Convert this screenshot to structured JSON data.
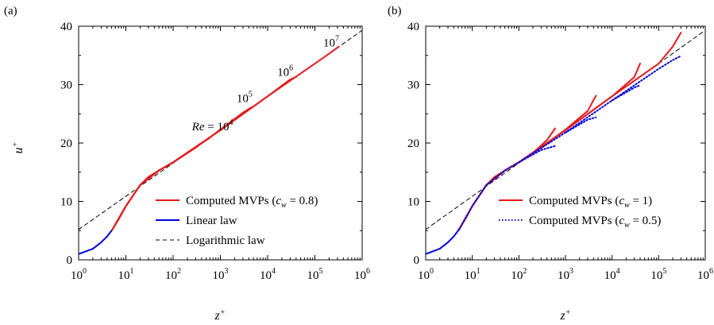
{
  "chart_data": [
    {
      "type": "line",
      "panel_label": "(a)",
      "xlabel": "z",
      "xlabel_sup": "+",
      "ylabel": "u",
      "ylabel_sup": "+",
      "xscale": "log",
      "xlim": [
        1,
        1000000
      ],
      "ylim": [
        0,
        40
      ],
      "x_ticks": [
        {
          "base": "10",
          "exp": "0"
        },
        {
          "base": "10",
          "exp": "1"
        },
        {
          "base": "10",
          "exp": "2"
        },
        {
          "base": "10",
          "exp": "3"
        },
        {
          "base": "10",
          "exp": "4"
        },
        {
          "base": "10",
          "exp": "5"
        },
        {
          "base": "10",
          "exp": "6"
        }
      ],
      "y_ticks": [
        "0",
        "10",
        "20",
        "30",
        "40"
      ],
      "legend_position": "bottom-right",
      "legend": [
        {
          "prefix": "Computed MVPs (",
          "var": "c",
          "sub": "w",
          "suffix": " = 0.8)",
          "color": "#e41a1c",
          "style": "solid"
        },
        {
          "prefix": "Linear law",
          "var": "",
          "sub": "",
          "suffix": "",
          "color": "#0000dd",
          "style": "solid"
        },
        {
          "prefix": "Logarithmic law",
          "var": "",
          "sub": "",
          "suffix": "",
          "color": "#000000",
          "style": "dashed"
        }
      ],
      "re_labels": [
        {
          "prefix": "Re",
          "mid": " = 10",
          "exp": "4",
          "x": 250,
          "y": 22.2
        },
        {
          "prefix": "",
          "mid": "10",
          "exp": "5",
          "x": 2200,
          "y": 27.0
        },
        {
          "prefix": "",
          "mid": "10",
          "exp": "6",
          "x": 16000,
          "y": 31.5
        },
        {
          "prefix": "",
          "mid": "10",
          "exp": "7",
          "x": 150000,
          "y": 36.5
        }
      ],
      "series": [
        {
          "role": "linear",
          "color": "#0000dd",
          "style": "solid",
          "x": [
            1,
            2,
            3,
            4,
            5.2
          ],
          "y": [
            1,
            1.9,
            3.0,
            4.0,
            5.2
          ]
        },
        {
          "role": "log",
          "color": "#000000",
          "style": "dashed",
          "x": [
            1,
            1000000
          ],
          "y": [
            5.2,
            39.3
          ]
        },
        {
          "role": "computed",
          "color": "#e41a1c",
          "style": "solid",
          "x": [
            5.2,
            7,
            10,
            15,
            20,
            30,
            50,
            100,
            200,
            400,
            600
          ],
          "y": [
            5.2,
            6.9,
            9.2,
            11.3,
            12.8,
            14.2,
            15.3,
            16.7,
            18.3,
            20.0,
            20.9
          ]
        },
        {
          "role": "computed",
          "color": "#e41a1c",
          "style": "solid",
          "x": [
            5.2,
            10,
            20,
            50,
            100,
            300,
            1000,
            3000,
            4500
          ],
          "y": [
            5.2,
            9.2,
            12.8,
            15.3,
            16.7,
            19.2,
            22.3,
            25.2,
            26.1
          ]
        },
        {
          "role": "computed",
          "color": "#e41a1c",
          "style": "solid",
          "x": [
            5.2,
            10,
            20,
            50,
            100,
            1000,
            10000,
            30000,
            40000
          ],
          "y": [
            5.2,
            9.2,
            12.8,
            15.3,
            16.7,
            22.2,
            28.0,
            30.9,
            31.3
          ]
        },
        {
          "role": "computed",
          "color": "#e41a1c",
          "style": "solid",
          "x": [
            5.2,
            10,
            20,
            50,
            100,
            1000,
            10000,
            100000,
            200000,
            320000
          ],
          "y": [
            5.2,
            9.2,
            12.8,
            15.3,
            16.7,
            22.2,
            28.0,
            33.6,
            35.3,
            36.5
          ]
        }
      ]
    },
    {
      "type": "line",
      "panel_label": "(b)",
      "xlabel": "z",
      "xlabel_sup": "+",
      "xscale": "log",
      "xlim": [
        1,
        1000000
      ],
      "ylim": [
        0,
        40
      ],
      "x_ticks": [
        {
          "base": "10",
          "exp": "0"
        },
        {
          "base": "10",
          "exp": "1"
        },
        {
          "base": "10",
          "exp": "2"
        },
        {
          "base": "10",
          "exp": "3"
        },
        {
          "base": "10",
          "exp": "4"
        },
        {
          "base": "10",
          "exp": "5"
        },
        {
          "base": "10",
          "exp": "6"
        }
      ],
      "legend_position": "bottom-right",
      "legend": [
        {
          "prefix": "Computed MVPs (",
          "var": "c",
          "sub": "w",
          "suffix": " = 1)",
          "color": "#e41a1c",
          "style": "solid"
        },
        {
          "prefix": "Computed MVPs (",
          "var": "c",
          "sub": "w",
          "suffix": " = 0.5)",
          "color": "#0000dd",
          "style": "dotted"
        }
      ],
      "series": [
        {
          "role": "linear",
          "color": "#0000dd",
          "style": "solid",
          "x": [
            1,
            2,
            3,
            4,
            5.2
          ],
          "y": [
            1,
            1.9,
            3.0,
            4.0,
            5.2
          ]
        },
        {
          "role": "log",
          "color": "#000000",
          "style": "dashed",
          "x": [
            1,
            1000000
          ],
          "y": [
            5.2,
            39.3
          ]
        },
        {
          "role": "cw1",
          "color": "#e41a1c",
          "style": "solid",
          "x": [
            5.2,
            7,
            10,
            15,
            20,
            30,
            50,
            100,
            200,
            400,
            600
          ],
          "y": [
            5.2,
            6.9,
            9.2,
            11.3,
            12.8,
            14.2,
            15.3,
            16.7,
            18.3,
            20.5,
            22.5
          ]
        },
        {
          "role": "cw1",
          "color": "#e41a1c",
          "style": "solid",
          "x": [
            5.2,
            10,
            20,
            50,
            100,
            300,
            1000,
            3000,
            4500
          ],
          "y": [
            5.2,
            9.2,
            12.8,
            15.3,
            16.7,
            19.2,
            22.3,
            25.5,
            28.1
          ]
        },
        {
          "role": "cw1",
          "color": "#e41a1c",
          "style": "solid",
          "x": [
            5.2,
            10,
            20,
            50,
            100,
            1000,
            10000,
            30000,
            40000
          ],
          "y": [
            5.2,
            9.2,
            12.8,
            15.3,
            16.7,
            22.2,
            28.0,
            31.3,
            33.6
          ]
        },
        {
          "role": "cw1",
          "color": "#e41a1c",
          "style": "solid",
          "x": [
            5.2,
            10,
            20,
            50,
            100,
            1000,
            10000,
            100000,
            200000,
            300000
          ],
          "y": [
            5.2,
            9.2,
            12.8,
            15.3,
            16.7,
            22.2,
            28.0,
            33.6,
            36.5,
            38.9
          ]
        },
        {
          "role": "cw05",
          "color": "#0000dd",
          "style": "dotted",
          "x": [
            5.2,
            10,
            20,
            50,
            100,
            300,
            600
          ],
          "y": [
            5.2,
            9.2,
            12.8,
            15.3,
            16.7,
            18.8,
            19.5
          ]
        },
        {
          "role": "cw05",
          "color": "#0000dd",
          "style": "dotted",
          "x": [
            100,
            1000,
            3000,
            4500
          ],
          "y": [
            16.7,
            21.8,
            24.0,
            24.4
          ]
        },
        {
          "role": "cw05",
          "color": "#0000dd",
          "style": "dotted",
          "x": [
            1000,
            10000,
            30000,
            40000
          ],
          "y": [
            21.8,
            27.3,
            29.5,
            29.9
          ]
        },
        {
          "role": "cw05",
          "color": "#0000dd",
          "style": "dotted",
          "x": [
            10000,
            100000,
            200000,
            300000
          ],
          "y": [
            27.3,
            32.7,
            34.2,
            34.9
          ]
        }
      ]
    }
  ]
}
